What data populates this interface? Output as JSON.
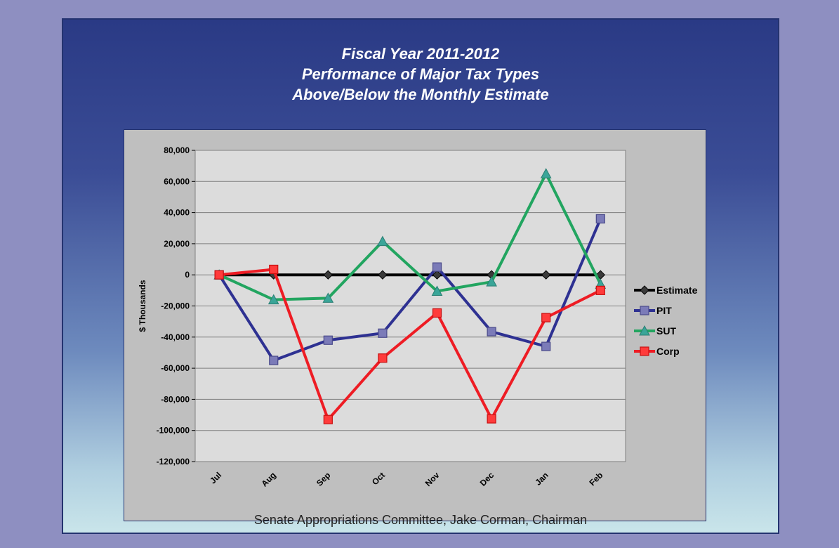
{
  "chart_data": {
    "type": "line",
    "title": [
      "Fiscal Year 2011-2012",
      "Performance of Major Tax Types",
      "Above/Below the Monthly Estimate"
    ],
    "ylabel": "$ Thousands",
    "xlabel": "",
    "ylim": [
      -120000,
      80000
    ],
    "yticks": [
      80000,
      60000,
      40000,
      20000,
      0,
      -20000,
      -40000,
      -60000,
      -80000,
      -100000,
      -120000
    ],
    "ytick_labels": [
      "80,000",
      "60,000",
      "40,000",
      "20,000",
      "0",
      "-20,000",
      "-40,000",
      "-60,000",
      "-80,000",
      "-100,000",
      "-120,000"
    ],
    "categories": [
      "Jul",
      "Aug",
      "Sep",
      "Oct",
      "Nov",
      "Dec",
      "Jan",
      "Feb"
    ],
    "grid": true,
    "legend_position": "right",
    "series": [
      {
        "name": "Estimate",
        "color": "#000000",
        "marker": "diamond",
        "values": [
          0,
          0,
          0,
          0,
          0,
          0,
          0,
          0
        ]
      },
      {
        "name": "PIT",
        "color": "#2e3192",
        "marker": "square",
        "values": [
          0,
          -55000,
          -42000,
          -37500,
          5000,
          -36500,
          -46000,
          36000
        ]
      },
      {
        "name": "SUT",
        "color": "#22a560",
        "marker": "triangle",
        "values": [
          0,
          -16000,
          -15000,
          21500,
          -10500,
          -4500,
          65000,
          -6000
        ]
      },
      {
        "name": "Corp",
        "color": "#ee1c24",
        "marker": "square",
        "values": [
          0,
          3500,
          -93000,
          -53500,
          -24500,
          -92500,
          -27500,
          -10000
        ]
      }
    ]
  },
  "footer": "Senate Appropriations Committee, Jake Corman, Chairman"
}
